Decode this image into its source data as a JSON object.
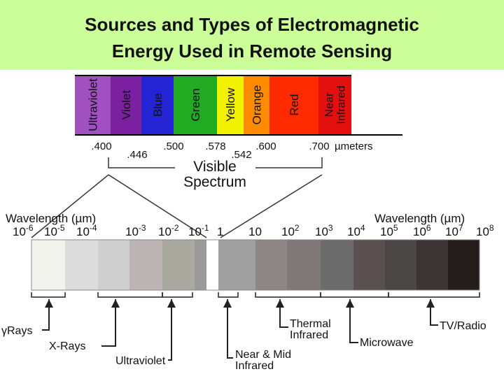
{
  "header": {
    "title_lines": [
      "Sources and Types of Electromagnetic",
      "Energy Used in Remote Sensing"
    ]
  },
  "visible": {
    "bands": [
      "Ultraviolet",
      "Violet",
      "Blue",
      "Green",
      "Yellow",
      "Orange",
      "Red",
      "Near Infrared"
    ],
    "ticks": [
      ".400",
      ".446",
      ".500",
      ".578",
      ".542",
      ".600",
      ".700"
    ],
    "unit": "µmeters",
    "label_lines": [
      "Visible",
      "Spectrum"
    ]
  },
  "wavelength": {
    "left_label": "Wavelength (µm)",
    "right_label": "Wavelength (µm)",
    "scale": [
      {
        "base": "10",
        "power": "-6"
      },
      {
        "base": "10",
        "power": "-5"
      },
      {
        "base": "10",
        "power": "-4"
      },
      {
        "base": "10",
        "power": "-3"
      },
      {
        "base": "10",
        "power": "-2"
      },
      {
        "base": "10",
        "power": "-1"
      },
      {
        "base": "1"
      },
      {
        "base": "10"
      },
      {
        "base": "10",
        "power": "2"
      },
      {
        "base": "10",
        "power": "3"
      },
      {
        "base": "10",
        "power": "4"
      },
      {
        "base": "10",
        "power": "5"
      },
      {
        "base": "10",
        "power": "6"
      },
      {
        "base": "10",
        "power": "7"
      },
      {
        "base": "10",
        "power": "8"
      }
    ]
  },
  "regions": [
    {
      "lines": [
        "γRays"
      ]
    },
    {
      "lines": [
        "X-Rays"
      ]
    },
    {
      "lines": [
        "Ultraviolet"
      ]
    },
    {
      "lines": [
        "Near & Mid",
        "Infrared"
      ]
    },
    {
      "lines": [
        "Thermal",
        "Infrared"
      ]
    },
    {
      "lines": [
        "Microwave"
      ]
    },
    {
      "lines": [
        "TV/Radio"
      ]
    }
  ]
}
